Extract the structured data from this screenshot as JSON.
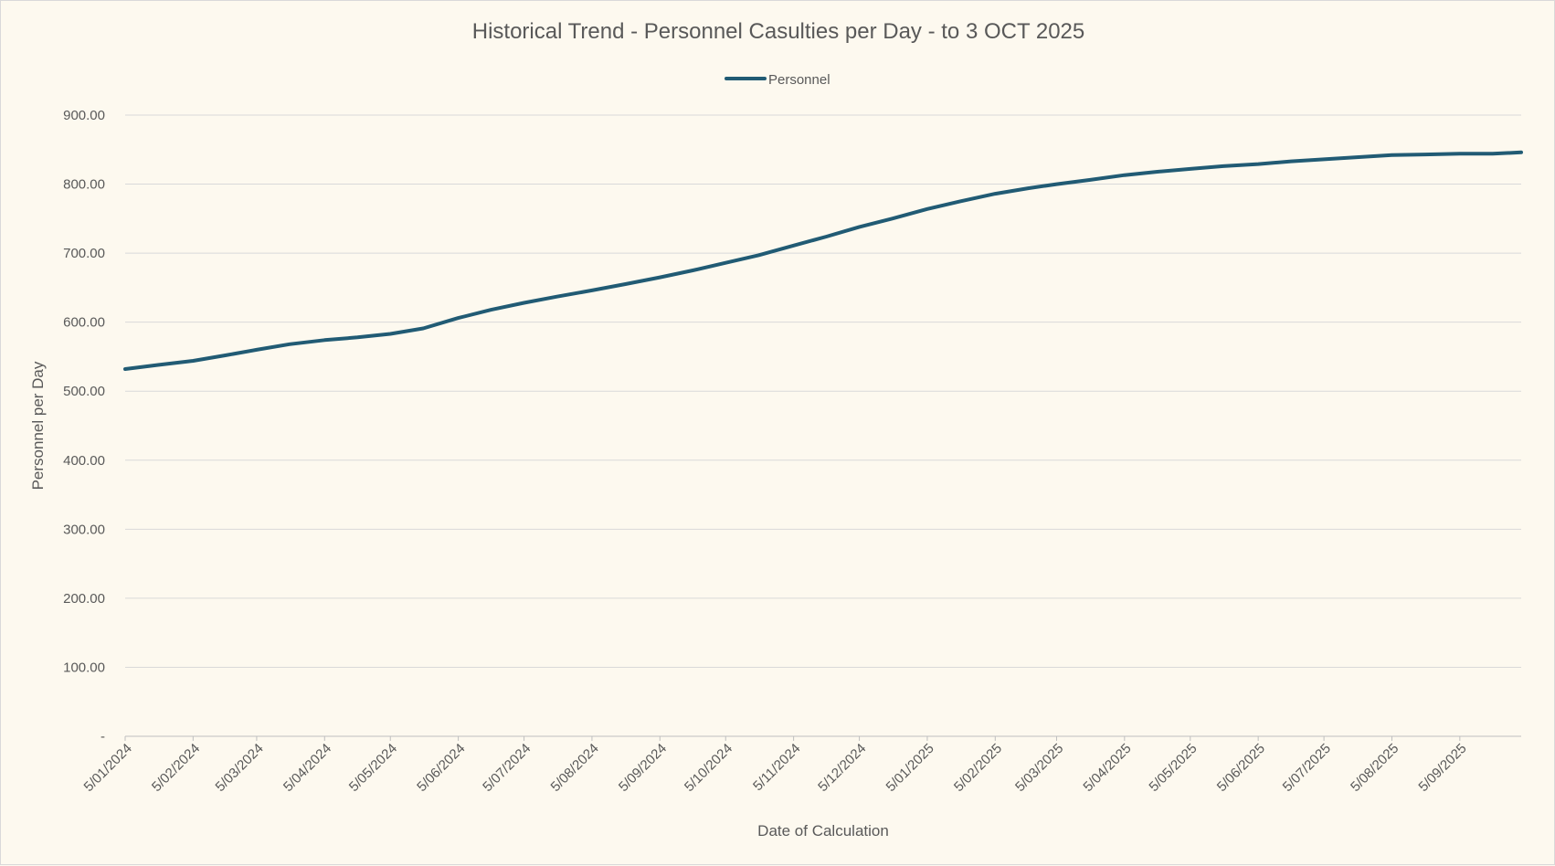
{
  "colors": {
    "background": "#fdf9ef",
    "series_line": "#215b74",
    "gridline": "#d9d9d9",
    "text": "#595959"
  },
  "chart_data": {
    "type": "line",
    "title": "Historical Trend - Personnel Casulties per Day - to 3 OCT 2025",
    "xlabel": "Date of Calculation",
    "ylabel": "Personnel per Day",
    "ylim": [
      0,
      900
    ],
    "y_ticks": [
      "-",
      "100.00",
      "200.00",
      "300.00",
      "400.00",
      "500.00",
      "600.00",
      "700.00",
      "800.00",
      "900.00"
    ],
    "x_tick_labels": [
      "5/01/2024",
      "5/02/2024",
      "5/03/2024",
      "5/04/2024",
      "5/05/2024",
      "5/06/2024",
      "5/07/2024",
      "5/08/2024",
      "5/09/2024",
      "5/10/2024",
      "5/11/2024",
      "5/12/2024",
      "5/01/2025",
      "5/02/2025",
      "5/03/2025",
      "5/04/2025",
      "5/05/2025",
      "5/06/2025",
      "5/07/2025",
      "5/08/2025",
      "5/09/2025"
    ],
    "x_range": [
      "2024-01-05",
      "2025-10-03"
    ],
    "grid": true,
    "legend_position": "top",
    "series": [
      {
        "name": "Personnel",
        "points": [
          [
            "2024-01-05",
            532
          ],
          [
            "2024-01-20",
            538
          ],
          [
            "2024-02-05",
            544
          ],
          [
            "2024-02-20",
            552
          ],
          [
            "2024-03-05",
            560
          ],
          [
            "2024-03-20",
            568
          ],
          [
            "2024-04-05",
            574
          ],
          [
            "2024-04-20",
            578
          ],
          [
            "2024-05-05",
            583
          ],
          [
            "2024-05-20",
            591
          ],
          [
            "2024-06-05",
            606
          ],
          [
            "2024-06-20",
            618
          ],
          [
            "2024-07-05",
            628
          ],
          [
            "2024-07-20",
            637
          ],
          [
            "2024-08-05",
            646
          ],
          [
            "2024-08-20",
            655
          ],
          [
            "2024-09-05",
            665
          ],
          [
            "2024-09-20",
            675
          ],
          [
            "2024-10-05",
            686
          ],
          [
            "2024-10-20",
            697
          ],
          [
            "2024-11-05",
            711
          ],
          [
            "2024-11-20",
            724
          ],
          [
            "2024-12-05",
            738
          ],
          [
            "2024-12-20",
            750
          ],
          [
            "2025-01-05",
            764
          ],
          [
            "2025-01-20",
            775
          ],
          [
            "2025-02-05",
            786
          ],
          [
            "2025-02-20",
            794
          ],
          [
            "2025-03-05",
            800
          ],
          [
            "2025-03-20",
            806
          ],
          [
            "2025-04-05",
            813
          ],
          [
            "2025-04-20",
            818
          ],
          [
            "2025-05-05",
            822
          ],
          [
            "2025-05-20",
            826
          ],
          [
            "2025-06-05",
            829
          ],
          [
            "2025-06-20",
            833
          ],
          [
            "2025-07-05",
            836
          ],
          [
            "2025-07-20",
            839
          ],
          [
            "2025-08-05",
            842
          ],
          [
            "2025-08-20",
            843
          ],
          [
            "2025-09-05",
            844
          ],
          [
            "2025-09-20",
            844
          ],
          [
            "2025-10-03",
            846
          ]
        ]
      }
    ]
  }
}
